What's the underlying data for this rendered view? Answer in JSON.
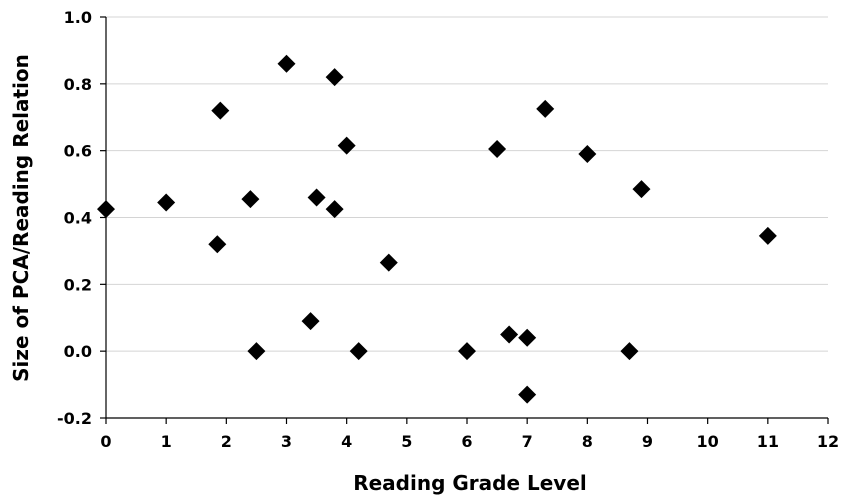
{
  "chart_data": {
    "type": "scatter",
    "title": "",
    "xlabel": "Reading Grade Level",
    "ylabel": "Size of PCA/Reading Relation",
    "xlim": [
      0,
      12
    ],
    "ylim": [
      -0.2,
      1.0
    ],
    "x_ticks": [
      "0",
      "1",
      "2",
      "3",
      "4",
      "5",
      "6",
      "7",
      "8",
      "9",
      "10",
      "11",
      "12"
    ],
    "y_ticks": [
      "-0.2",
      "0.0",
      "0.2",
      "0.4",
      "0.6",
      "0.8",
      "1.0"
    ],
    "grid": "horizontal",
    "marker": "diamond",
    "marker_color": "#000000",
    "series": [
      {
        "points": [
          {
            "x": 0,
            "y": 0.425
          },
          {
            "x": 1,
            "y": 0.445
          },
          {
            "x": 1.85,
            "y": 0.32
          },
          {
            "x": 1.9,
            "y": 0.72
          },
          {
            "x": 2.4,
            "y": 0.455
          },
          {
            "x": 2.5,
            "y": 0.0
          },
          {
            "x": 3.0,
            "y": 0.86
          },
          {
            "x": 3.4,
            "y": 0.09
          },
          {
            "x": 3.5,
            "y": 0.46
          },
          {
            "x": 3.8,
            "y": 0.82
          },
          {
            "x": 3.8,
            "y": 0.425
          },
          {
            "x": 4.0,
            "y": 0.615
          },
          {
            "x": 4.2,
            "y": 0.0
          },
          {
            "x": 4.7,
            "y": 0.265
          },
          {
            "x": 6.0,
            "y": 0.0
          },
          {
            "x": 6.5,
            "y": 0.605
          },
          {
            "x": 6.7,
            "y": 0.05
          },
          {
            "x": 7.0,
            "y": 0.04
          },
          {
            "x": 7.0,
            "y": -0.13
          },
          {
            "x": 7.3,
            "y": 0.725
          },
          {
            "x": 8.0,
            "y": 0.59
          },
          {
            "x": 8.7,
            "y": 0.0
          },
          {
            "x": 8.9,
            "y": 0.485
          },
          {
            "x": 11.0,
            "y": 0.345
          }
        ]
      }
    ]
  }
}
